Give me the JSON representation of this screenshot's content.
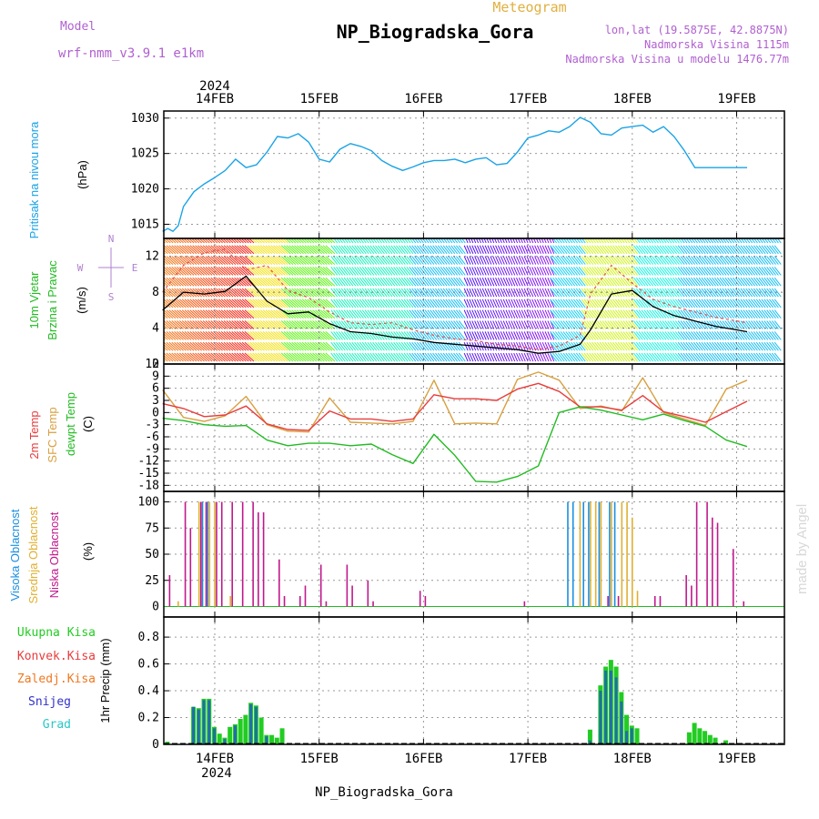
{
  "header": {
    "model_label": "Model",
    "model_name": "wrf-nmm_v3.9.1 e1km",
    "meteogram": "Meteogram",
    "station_title": "NP_Biogradska_Gora",
    "lonlat": "lon,lat (19.5875E, 42.8875N)",
    "elevation": "Nadmorska Visina 1115m",
    "model_elevation": "Nadmorska Visina u modelu 1476.77m"
  },
  "footer_label": "NP_Biogradska_Gora",
  "watermark": "made by Angel",
  "time_axis": {
    "year": "2024",
    "days": [
      "14FEB",
      "15FEB",
      "16FEB",
      "17FEB",
      "18FEB",
      "19FEB"
    ]
  },
  "colors": {
    "pressure": "#1aa3e6",
    "temp2m": "#e83c3c",
    "sfctemp": "#d8a040",
    "dewpoint": "#22bb22",
    "high_cloud": "#1a8fe0",
    "mid_cloud": "#e0b030",
    "low_cloud": "#c0188c",
    "total_precip": "#22cc22",
    "conv_precip": "#e83c3c",
    "frozen_precip": "#f07820",
    "snow": "#3232c8",
    "hail": "#28c8c8",
    "ylab_pressure": "#1aa3e6",
    "ylab_wind": "#22bb22",
    "ylab_compass": "#b080d0"
  },
  "chart_data": [
    {
      "type": "line",
      "name": "pressure",
      "ylabel": "Pritisak na nivou mora",
      "units": "(hPa)",
      "ylim": [
        1013,
        1031
      ],
      "yticks": [
        1015,
        1020,
        1025,
        1030
      ],
      "x_days": [
        0,
        0.05,
        0.1,
        0.15,
        0.2,
        0.3,
        0.4,
        0.5,
        0.6,
        0.7,
        0.8,
        0.9,
        1.0,
        1.1,
        1.2,
        1.3,
        1.4,
        1.5,
        1.6,
        1.7,
        1.8,
        1.9,
        2.0,
        2.1,
        2.2,
        2.3,
        2.4,
        2.5,
        2.6,
        2.7,
        2.8,
        2.9,
        3.0,
        3.1,
        3.2,
        3.3,
        3.4,
        3.5,
        3.6,
        3.7,
        3.8,
        3.9,
        4.0,
        4.1,
        4.2,
        4.3,
        4.4,
        4.5,
        4.6,
        4.7,
        4.8,
        4.9,
        5.0,
        5.1,
        5.2,
        5.3,
        5.4,
        5.5,
        5.6
      ],
      "values": [
        1014.0,
        1014.4,
        1014.0,
        1014.8,
        1017.5,
        1019.6,
        1020.7,
        1021.6,
        1022.6,
        1024.2,
        1023.0,
        1023.4,
        1025.2,
        1027.4,
        1027.2,
        1027.8,
        1026.6,
        1024.2,
        1023.8,
        1025.6,
        1026.4,
        1026.0,
        1025.4,
        1024.0,
        1023.2,
        1022.6,
        1023.1,
        1023.7,
        1024.0,
        1024.0,
        1024.2,
        1023.7,
        1024.2,
        1024.4,
        1023.4,
        1023.6,
        1025.2,
        1027.2,
        1027.6,
        1028.2,
        1028.0,
        1028.8,
        1030.1,
        1029.4,
        1027.8,
        1027.6,
        1028.6,
        1028.8,
        1029.0,
        1028.0,
        1028.8,
        1027.4,
        1025.4,
        1023.0,
        1023.0,
        1023.0,
        1023.0,
        1023.0,
        1023.0
      ]
    },
    {
      "type": "line",
      "name": "wind",
      "ylabel_1": "10m Vjetar",
      "ylabel_2": "Brzina i Pravac",
      "units": "(m/s)",
      "compass": [
        "N",
        "E",
        "S",
        "W"
      ],
      "ylim": [
        0,
        14
      ],
      "yticks": [
        0,
        4,
        8,
        12
      ],
      "x_days": [
        0,
        0.2,
        0.4,
        0.6,
        0.8,
        1.0,
        1.2,
        1.4,
        1.6,
        1.8,
        2.0,
        2.2,
        2.4,
        2.6,
        2.8,
        3.0,
        3.2,
        3.4,
        3.6,
        3.8,
        4.0,
        4.1,
        4.3,
        4.5,
        4.7,
        4.9,
        5.1,
        5.3,
        5.6
      ],
      "speed": [
        6.0,
        8.0,
        7.8,
        8.1,
        9.8,
        7.0,
        5.6,
        5.8,
        4.5,
        3.6,
        3.4,
        3.0,
        2.8,
        2.4,
        2.2,
        2.0,
        1.8,
        1.6,
        1.2,
        1.4,
        2.2,
        3.8,
        7.8,
        8.2,
        6.4,
        5.4,
        4.8,
        4.2,
        3.6
      ],
      "gust": [
        8.0,
        11.0,
        12.4,
        12.8,
        10.5,
        11.0,
        8.2,
        7.4,
        5.8,
        4.6,
        4.4,
        4.6,
        3.8,
        3.2,
        2.8,
        2.6,
        2.2,
        2.0,
        1.6,
        2.0,
        3.2,
        7.8,
        11.0,
        9.0,
        7.2,
        6.4,
        5.8,
        5.2,
        4.6
      ]
    },
    {
      "type": "line",
      "name": "temperature",
      "ylabel_1": "2m Temp",
      "ylabel_2": "SFC Temp",
      "ylabel_3": "dewpt Temp",
      "units": "(C)",
      "ylim": [
        -19.5,
        12
      ],
      "yticks": [
        -18,
        -15,
        -12,
        -9,
        -6,
        -3,
        0,
        3,
        6,
        9,
        12
      ],
      "x_days": [
        0,
        0.2,
        0.4,
        0.6,
        0.8,
        1.0,
        1.2,
        1.4,
        1.6,
        1.8,
        2.0,
        2.2,
        2.4,
        2.6,
        2.8,
        3.0,
        3.2,
        3.4,
        3.6,
        3.8,
        4.0,
        4.2,
        4.4,
        4.6,
        4.8,
        5.0,
        5.2,
        5.4,
        5.6
      ],
      "t2m": [
        2.2,
        1.0,
        -1.0,
        -0.6,
        1.6,
        -2.8,
        -4.2,
        -4.4,
        0.4,
        -1.6,
        -1.6,
        -2.2,
        -1.6,
        4.4,
        3.4,
        3.4,
        3.0,
        5.8,
        7.2,
        5.2,
        1.4,
        1.4,
        0.6,
        4.2,
        0.2,
        -1.0,
        -2.4,
        0.2,
        2.8
      ],
      "tsfc": [
        5.6,
        -1.2,
        -2.2,
        -0.8,
        4.0,
        -3.0,
        -4.6,
        -4.8,
        3.6,
        -2.4,
        -2.6,
        -2.8,
        -2.2,
        8.0,
        -2.8,
        -2.6,
        -2.8,
        8.2,
        10.0,
        8.0,
        1.0,
        1.6,
        0.4,
        8.6,
        0.0,
        -1.6,
        -3.2,
        5.8,
        8.0
      ],
      "dewpt": [
        -1.4,
        -2.0,
        -3.0,
        -3.4,
        -3.2,
        -6.8,
        -8.2,
        -7.6,
        -7.6,
        -8.2,
        -7.8,
        -10.4,
        -12.6,
        -5.4,
        -10.6,
        -17.0,
        -17.2,
        -15.8,
        -13.2,
        0.0,
        1.4,
        0.6,
        -0.6,
        -1.8,
        -0.4,
        -2.0,
        -3.4,
        -6.8,
        -8.4
      ]
    },
    {
      "type": "bar",
      "name": "cloud_cover",
      "ylabel_1": "Visoka Oblacnost",
      "ylabel_2": "Srednja Oblacnost",
      "ylabel_3": "Niska Oblacnost",
      "units": "(%)",
      "ylim": [
        0,
        100
      ],
      "yticks": [
        0,
        25,
        50,
        75,
        100
      ],
      "low": [
        [
          0.05,
          30
        ],
        [
          0.2,
          100
        ],
        [
          0.25,
          75
        ],
        [
          0.35,
          100
        ],
        [
          0.4,
          100
        ],
        [
          0.5,
          100
        ],
        [
          0.55,
          100
        ],
        [
          0.65,
          100
        ],
        [
          0.75,
          100
        ],
        [
          0.85,
          100
        ],
        [
          0.9,
          90
        ],
        [
          0.95,
          90
        ],
        [
          1.1,
          45
        ],
        [
          1.15,
          10
        ],
        [
          1.3,
          10
        ],
        [
          1.35,
          20
        ],
        [
          1.5,
          40
        ],
        [
          1.55,
          5
        ],
        [
          1.75,
          40
        ],
        [
          1.8,
          20
        ],
        [
          1.95,
          25
        ],
        [
          2.0,
          5
        ],
        [
          2.45,
          15
        ],
        [
          2.5,
          10
        ],
        [
          3.45,
          5
        ],
        [
          4.25,
          10
        ],
        [
          4.35,
          10
        ],
        [
          4.7,
          10
        ],
        [
          4.75,
          10
        ],
        [
          5.0,
          30
        ],
        [
          5.05,
          20
        ],
        [
          5.1,
          100
        ],
        [
          5.2,
          100
        ],
        [
          5.25,
          85
        ],
        [
          5.3,
          80
        ],
        [
          5.45,
          55
        ],
        [
          5.55,
          5
        ]
      ],
      "mid": [
        [
          0.0,
          65
        ],
        [
          0.15,
          5
        ],
        [
          0.35,
          100
        ],
        [
          0.45,
          100
        ],
        [
          0.5,
          100
        ],
        [
          0.65,
          10
        ],
        [
          4.0,
          100
        ],
        [
          4.1,
          100
        ],
        [
          4.15,
          100
        ],
        [
          4.2,
          100
        ],
        [
          4.3,
          100
        ],
        [
          4.4,
          100
        ],
        [
          4.45,
          100
        ],
        [
          4.5,
          85
        ],
        [
          4.55,
          15
        ]
      ],
      "high": [
        [
          0.4,
          100
        ],
        [
          0.45,
          100
        ],
        [
          3.9,
          100
        ],
        [
          3.95,
          100
        ],
        [
          4.05,
          100
        ],
        [
          4.1,
          100
        ],
        [
          4.2,
          100
        ],
        [
          4.3,
          100
        ],
        [
          4.35,
          100
        ]
      ]
    },
    {
      "type": "bar",
      "name": "precipitation",
      "ylabel": "1hr Precip (mm)",
      "legend": [
        "Ukupna Kisa",
        "Konvek.Kisa",
        "Zaledj.Kisa",
        "Snijeg",
        "Grad"
      ],
      "ylim": [
        0,
        0.95
      ],
      "yticks": [
        0,
        0.2,
        0.4,
        0.6,
        0.8
      ],
      "total": [
        [
          0.0,
          0.02
        ],
        [
          0.05,
          0.02
        ],
        [
          0.3,
          0.28
        ],
        [
          0.35,
          0.27
        ],
        [
          0.4,
          0.34
        ],
        [
          0.45,
          0.34
        ],
        [
          0.5,
          0.13
        ],
        [
          0.55,
          0.08
        ],
        [
          0.6,
          0.05
        ],
        [
          0.65,
          0.13
        ],
        [
          0.7,
          0.15
        ],
        [
          0.75,
          0.19
        ],
        [
          0.8,
          0.22
        ],
        [
          0.85,
          0.31
        ],
        [
          0.9,
          0.29
        ],
        [
          0.95,
          0.2
        ],
        [
          1.0,
          0.07
        ],
        [
          1.05,
          0.07
        ],
        [
          1.1,
          0.05
        ],
        [
          1.15,
          0.12
        ],
        [
          4.1,
          0.11
        ],
        [
          4.2,
          0.44
        ],
        [
          4.25,
          0.58
        ],
        [
          4.3,
          0.63
        ],
        [
          4.35,
          0.58
        ],
        [
          4.4,
          0.39
        ],
        [
          4.45,
          0.22
        ],
        [
          4.5,
          0.14
        ],
        [
          4.55,
          0.12
        ],
        [
          5.05,
          0.09
        ],
        [
          5.1,
          0.16
        ],
        [
          5.15,
          0.12
        ],
        [
          5.2,
          0.1
        ],
        [
          5.25,
          0.07
        ],
        [
          5.3,
          0.05
        ],
        [
          5.4,
          0.03
        ]
      ],
      "snow": [
        [
          0.3,
          0.28
        ],
        [
          0.35,
          0.26
        ],
        [
          0.4,
          0.33
        ],
        [
          0.45,
          0.33
        ],
        [
          0.5,
          0.12
        ],
        [
          0.6,
          0.04
        ],
        [
          0.7,
          0.14
        ],
        [
          0.85,
          0.3
        ],
        [
          0.9,
          0.28
        ],
        [
          1.0,
          0.06
        ],
        [
          4.1,
          0.03
        ],
        [
          4.2,
          0.4
        ],
        [
          4.25,
          0.55
        ],
        [
          4.3,
          0.55
        ],
        [
          4.35,
          0.5
        ],
        [
          4.4,
          0.32
        ],
        [
          4.45,
          0.1
        ],
        [
          4.5,
          0.12
        ]
      ]
    }
  ]
}
